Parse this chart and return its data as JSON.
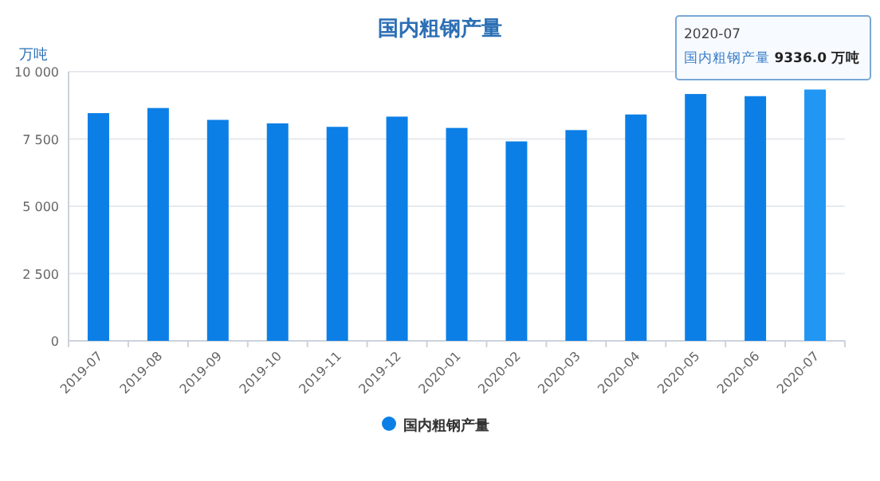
{
  "chart_data": {
    "type": "bar",
    "title": "国内粗钢产量",
    "ylabel": "万吨",
    "categories": [
      "2019-07",
      "2019-08",
      "2019-09",
      "2019-10",
      "2019-11",
      "2019-12",
      "2020-01",
      "2020-02",
      "2020-03",
      "2020-04",
      "2020-05",
      "2020-06",
      "2020-07"
    ],
    "series": [
      {
        "name": "国内粗钢产量",
        "colors": [
          "#0c7fe6",
          "#0c7fe6",
          "#0c7fe6",
          "#0c7fe6",
          "#0c7fe6",
          "#0c7fe6",
          "#0c7fe6",
          "#0c7fe6",
          "#0c7fe6",
          "#0c7fe6",
          "#0c7fe6",
          "#0c7fe6",
          "#2196f3"
        ],
        "values": [
          8460,
          8650,
          8210,
          8080,
          7950,
          8330,
          7910,
          7410,
          7830,
          8410,
          9170,
          9090,
          9336
        ]
      }
    ],
    "ylim": [
      0,
      10000
    ],
    "yticks": [
      0,
      {
        "value": 2500,
        "label": "2 500"
      },
      {
        "value": 5000,
        "label": "5 000"
      },
      {
        "value": 7500,
        "label": "7 500"
      },
      {
        "value": 10000,
        "label": "10 000"
      }
    ],
    "grid": "y",
    "legend": "bottom",
    "marker": "circle",
    "annotations": [
      "2020-07",
      "国内粗钢产量 **9336.0 万吨**"
    ]
  }
}
